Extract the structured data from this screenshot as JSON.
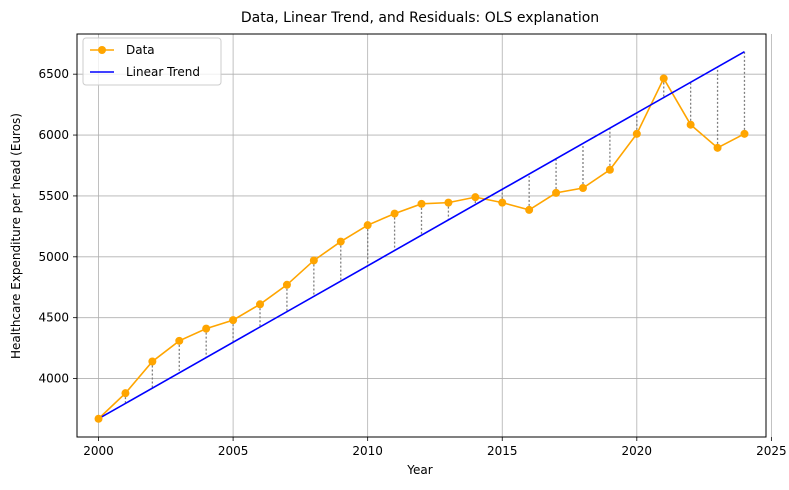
{
  "chart_data": {
    "type": "line",
    "title": "Data, Linear Trend, and Residuals: OLS explanation",
    "xlabel": "Year",
    "ylabel": "Healthcare Expenditure per head (Euros)",
    "xlim": [
      1999.2,
      2024.8
    ],
    "ylim": [
      3520,
      6830
    ],
    "xticks": [
      2000,
      2005,
      2010,
      2015,
      2020,
      2025
    ],
    "yticks": [
      4000,
      4500,
      5000,
      5500,
      6000,
      6500
    ],
    "grid": true,
    "legend_position": "top-left",
    "x": [
      2000,
      2001,
      2002,
      2003,
      2004,
      2005,
      2006,
      2007,
      2008,
      2009,
      2010,
      2011,
      2012,
      2013,
      2014,
      2015,
      2016,
      2017,
      2018,
      2019,
      2020,
      2021,
      2022,
      2023,
      2024
    ],
    "series": [
      {
        "name": "Data",
        "color": "#ffa500",
        "marker": "circle",
        "values": [
          3670,
          3880,
          4140,
          4310,
          4410,
          4480,
          4610,
          4770,
          4970,
          5125,
          5260,
          5355,
          5435,
          5445,
          5490,
          5445,
          5385,
          5525,
          5565,
          5715,
          6010,
          6465,
          6085,
          5895,
          6010
        ]
      },
      {
        "name": "Linear Trend",
        "color": "#0000ff",
        "x": [
          2000,
          2024
        ],
        "values": [
          3670,
          6685
        ]
      }
    ],
    "residuals": {
      "color": "#808080",
      "style": "dotted"
    }
  }
}
